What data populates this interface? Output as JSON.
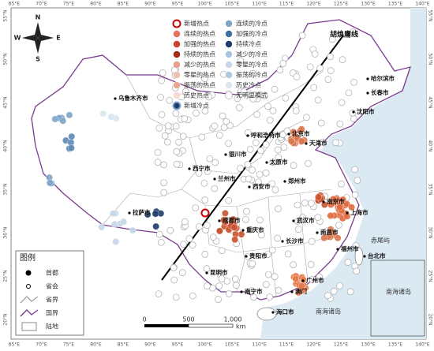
{
  "compass": [
    "N",
    "E",
    "S",
    "W"
  ],
  "longitude_labels": [
    "65°E",
    "70°E",
    "75°E",
    "80°E",
    "85°E",
    "90°E",
    "95°E",
    "100°E",
    "105°E",
    "110°E",
    "115°E",
    "120°E",
    "125°E",
    "130°E",
    "135°E",
    "140°E"
  ],
  "latitude_labels": [
    "55°N",
    "50°N",
    "45°N",
    "40°N",
    "35°N",
    "30°N",
    "25°N",
    "20°N"
  ],
  "legend_hot": [
    "新增热点",
    "连续的热点",
    "加强的热点",
    "持续的热点",
    "减少的热点",
    "零星的热点",
    "振荡的热点",
    "历史热点",
    "新增冷点"
  ],
  "legend_cold": [
    "连续的冷点",
    "加强的冷点",
    "持续冷点",
    "减少的冷点",
    "零星的冷点",
    "振荡的冷点",
    "历史冷点",
    "无明显模式"
  ],
  "cities": [
    "乌鲁木齐市",
    "哈尔滨市",
    "长春市",
    "沈阳市",
    "呼和浩特市",
    "北京市",
    "天津市",
    "银川市",
    "太原市",
    "西宁市",
    "兰州市",
    "郑州市",
    "西安市",
    "南京市",
    "上海市",
    "成都市",
    "重庆市",
    "武汉市",
    "拉萨市",
    "长沙市",
    "南昌市",
    "福州市",
    "台北市",
    "贵阳市",
    "昆明市",
    "南宁市",
    "广州市",
    "澳门",
    "海口市"
  ],
  "annotations": {
    "hu_line": "胡焕庸线",
    "island": "赤尾屿",
    "south_sea": "南海诸岛",
    "inset": "南海诸岛"
  },
  "key": {
    "title": "图例",
    "items": [
      "首都",
      "省会",
      "省界",
      "国界",
      "陆地"
    ]
  },
  "scale": {
    "ticks": [
      "0",
      "500",
      "1,000"
    ],
    "unit": "km"
  }
}
